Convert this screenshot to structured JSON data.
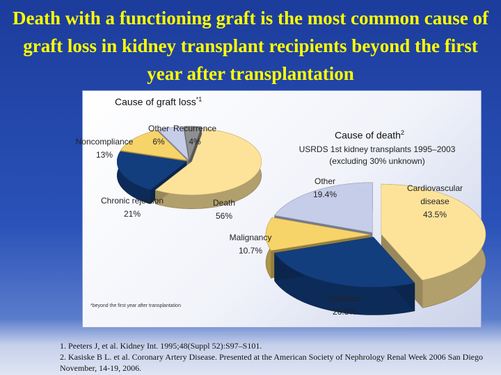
{
  "title": "Death with a functioning graft is the most common cause of graft loss in kidney transplant recipients beyond the first year after transplantation",
  "chart_data": [
    {
      "type": "pie",
      "title": "Cause of graft loss",
      "title_marker": "*1",
      "categories": [
        "Death",
        "Chronic rejection",
        "Noncompliance",
        "Other",
        "Recurrence"
      ],
      "values": [
        56,
        21,
        13,
        6,
        4
      ],
      "value_labels": [
        "56%",
        "21%",
        "13%",
        "6%",
        "4%"
      ],
      "colors": [
        "#fde39a",
        "#123e7e",
        "#f7d46a",
        "#c6cde9",
        "#8f8f8f"
      ],
      "footnote": "*beyond the first year after transplantation"
    },
    {
      "type": "pie",
      "title": "Cause of death",
      "title_marker": "2",
      "subtitle": "USRDS 1st kidney transplants 1995–2003 (excluding 30% unknown)",
      "categories": [
        "Cardiovascular disease",
        "Infection",
        "Malignancy",
        "Other"
      ],
      "values": [
        43.5,
        26.3,
        10.7,
        19.4
      ],
      "value_labels": [
        "43.5%",
        "26.3%",
        "10.7%",
        "19.4%"
      ],
      "colors": [
        "#fde39a",
        "#123e7e",
        "#f7d46a",
        "#c6cde9"
      ]
    }
  ],
  "references": [
    "1. Peeters J, et al. Kidney Int. 1995;48(Suppl 52):S97–S101.",
    "2. Kasiske B L. et al. Coronary Artery Disease. Presented at the American Society of Nephrology Renal Week 2006 San Diego November, 14-19, 2006."
  ]
}
